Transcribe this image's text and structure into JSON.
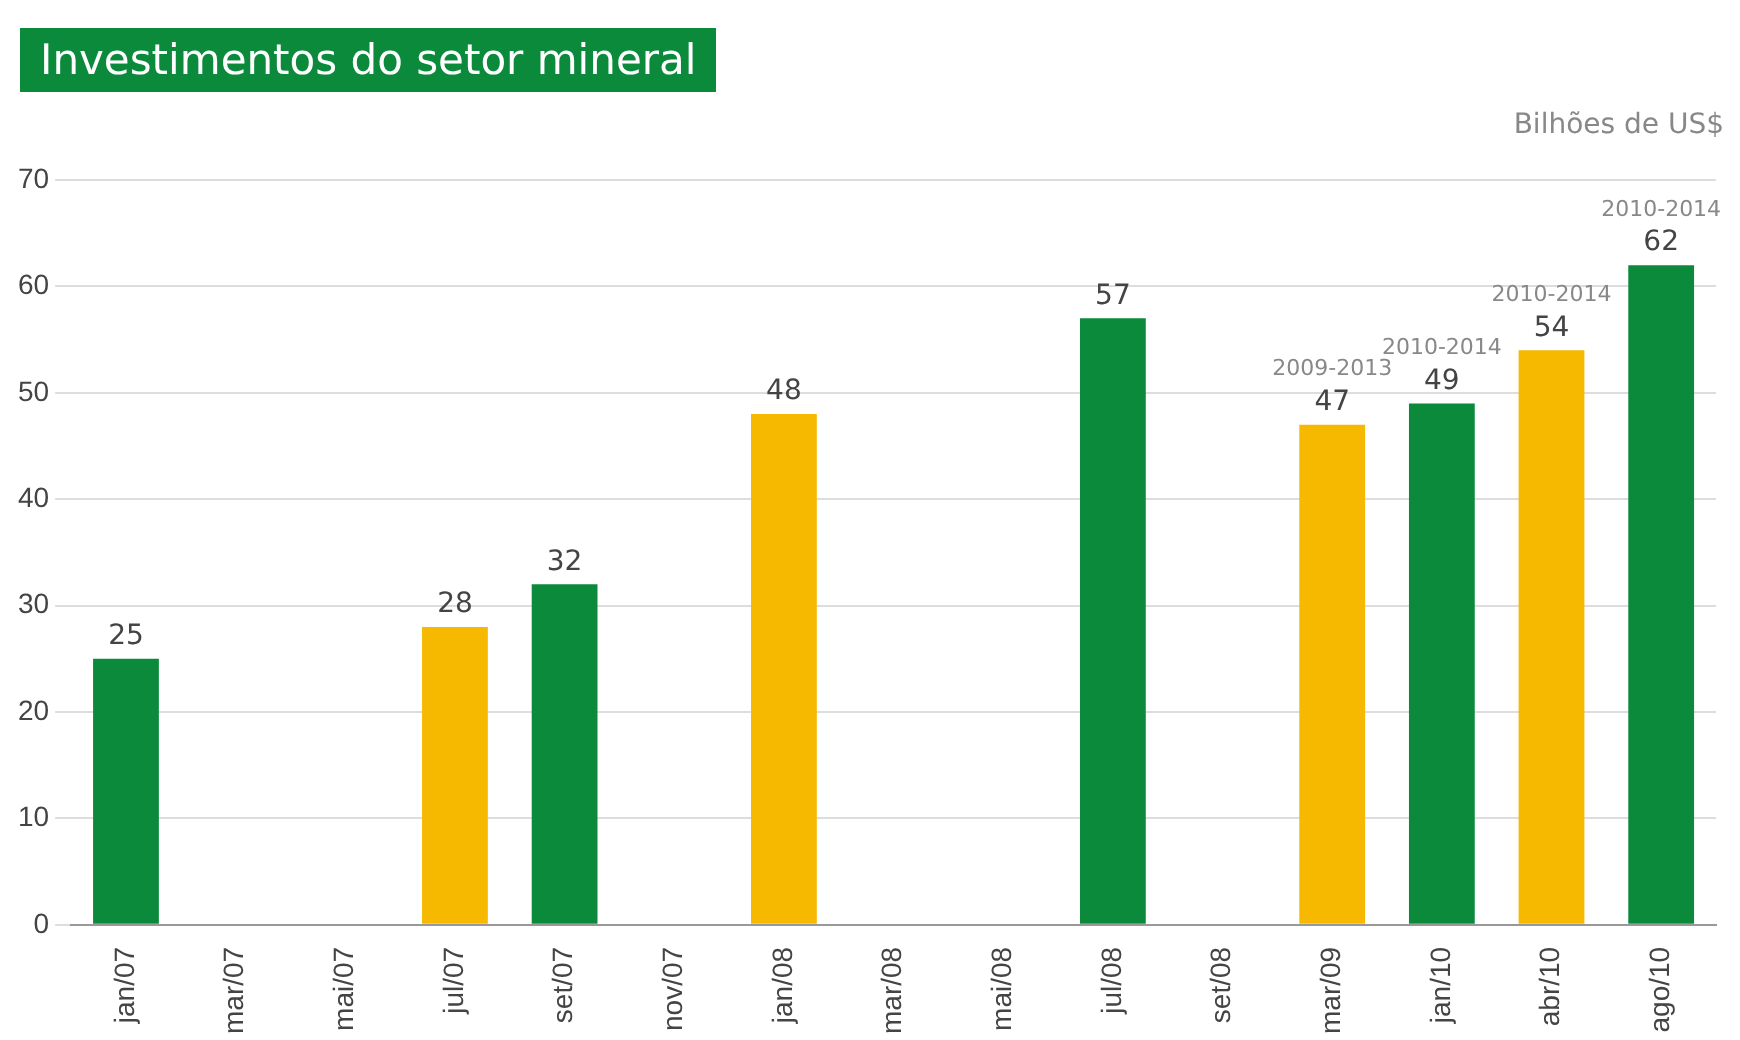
{
  "chart_data": {
    "type": "bar",
    "title": "Investimentos do setor mineral",
    "ylabel": "Bilhões de US$",
    "categories": [
      "jan/07",
      "mar/07",
      "mai/07",
      "jul/07",
      "set/07",
      "nov/07",
      "jan/08",
      "mar/08",
      "mai/08",
      "jul/08",
      "set/08",
      "mar/09",
      "jan/10",
      "abr/10",
      "ago/10"
    ],
    "values": [
      25,
      null,
      null,
      28,
      32,
      null,
      48,
      null,
      null,
      57,
      null,
      47,
      49,
      54,
      62
    ],
    "colors": [
      "#0b8a3c",
      "#0b8a3c",
      "#0b8a3c",
      "#f6b900",
      "#0b8a3c",
      "#0b8a3c",
      "#f6b900",
      "#0b8a3c",
      "#0b8a3c",
      "#0b8a3c",
      "#0b8a3c",
      "#f6b900",
      "#0b8a3c",
      "#f6b900",
      "#0b8a3c"
    ],
    "ylim": [
      0,
      70
    ],
    "yticks": [
      0,
      10,
      20,
      30,
      40,
      50,
      60,
      70
    ],
    "grid": "y",
    "data_labels": true,
    "annotations": [
      {
        "text": "2009-2013",
        "x": "mar/09",
        "y": 47
      },
      {
        "text": "2010-2014",
        "x": "jan/10",
        "y": 49
      },
      {
        "text": "2010-2014",
        "x": "abr/10",
        "y": 54
      },
      {
        "text": "2010-2014",
        "x": "ago/10",
        "y": 62
      }
    ]
  }
}
